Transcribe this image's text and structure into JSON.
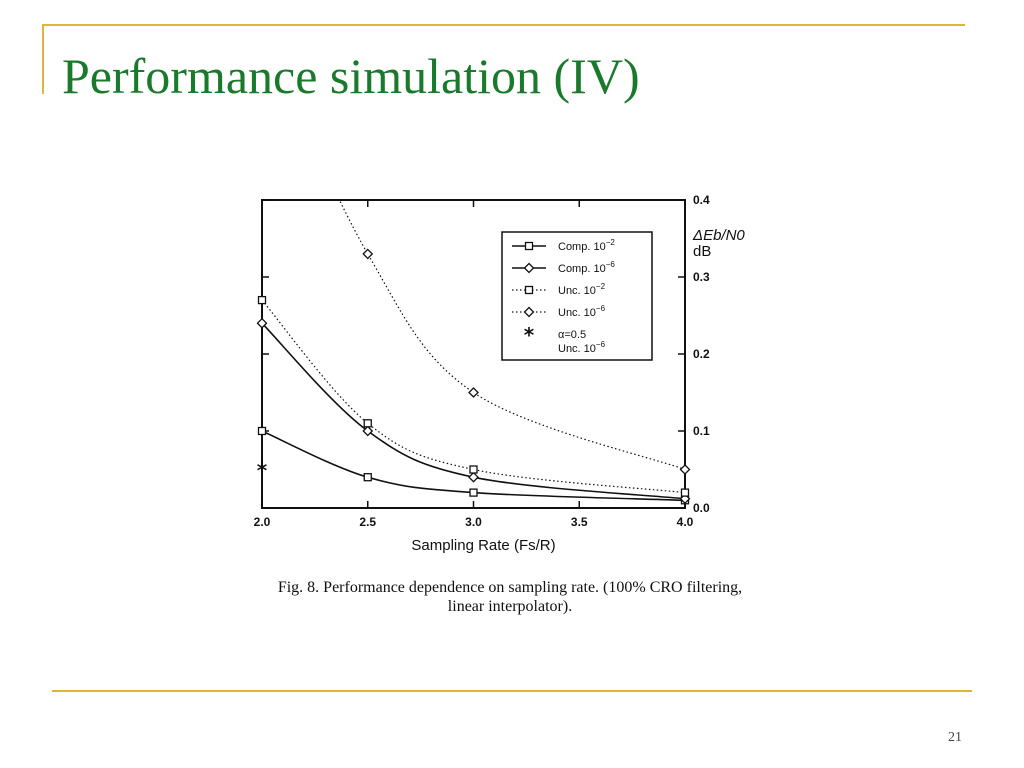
{
  "slide": {
    "title": "Performance simulation (IV)",
    "page_number": "21",
    "caption_line1": "Fig. 8.   Performance dependence on sampling rate. (100% CRO filtering,",
    "caption_line2": "linear interpolator)."
  },
  "colors": {
    "title": "#1a7a2c",
    "rule": "#e0b43c"
  },
  "chart_data": {
    "type": "line",
    "xlabel": "Sampling Rate (Fs/R)",
    "ylabel": "ΔEb/N0 dB",
    "xlim": [
      2.0,
      4.0
    ],
    "ylim": [
      0.0,
      0.4
    ],
    "xticks": [
      "2.0",
      "2.5",
      "3.0",
      "3.5",
      "4.0"
    ],
    "yticks": [
      "0.0",
      "0.1",
      "0.2",
      "0.3",
      "0.4"
    ],
    "y_axis_side": "right",
    "grid": false,
    "legend_position": "top-right",
    "series": [
      {
        "name": "Comp. 10",
        "exponent": "−2",
        "line": "solid",
        "marker": "square",
        "x": [
          2.0,
          2.5,
          3.0,
          4.0
        ],
        "y": [
          0.1,
          0.04,
          0.02,
          0.01
        ]
      },
      {
        "name": "Comp. 10",
        "exponent": "−6",
        "line": "solid",
        "marker": "diamond",
        "x": [
          2.0,
          2.5,
          3.0,
          4.0
        ],
        "y": [
          0.24,
          0.1,
          0.04,
          0.012
        ]
      },
      {
        "name": "Unc. 10",
        "exponent": "−2",
        "line": "dotted",
        "marker": "square",
        "x": [
          2.0,
          2.5,
          3.0,
          4.0
        ],
        "y": [
          0.27,
          0.11,
          0.05,
          0.02
        ]
      },
      {
        "name": "Unc. 10",
        "exponent": "−6",
        "line": "dotted",
        "marker": "diamond",
        "x": [
          2.5,
          3.0,
          4.0
        ],
        "y": [
          0.33,
          0.15,
          0.05
        ]
      },
      {
        "name": "α=0.5 Unc. 10",
        "exponent": "−6",
        "line": "none",
        "marker": "asterisk",
        "x": [
          2.0
        ],
        "y": [
          0.05
        ]
      }
    ]
  }
}
